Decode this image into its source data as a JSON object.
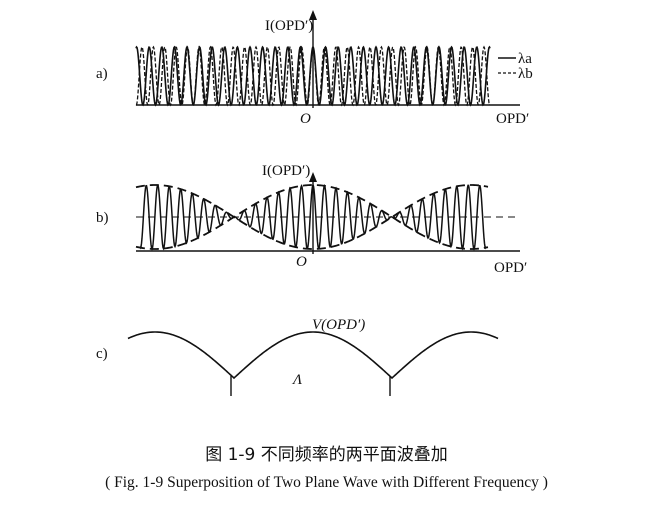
{
  "panels": [
    {
      "id": "a",
      "label": "a)",
      "y_axis_label": "I(OPD′)",
      "x_axis_label": "OPD′",
      "origin_label": "O",
      "legend": [
        {
          "symbol": "—",
          "name": "λa"
        },
        {
          "symbol": "---",
          "name": "λb"
        }
      ]
    },
    {
      "id": "b",
      "label": "b)",
      "y_axis_label": "I(OPD′)",
      "x_axis_label": "OPD′",
      "origin_label": "O"
    },
    {
      "id": "c",
      "label": "c)",
      "curve_label": "V(OPD′)",
      "period_label": "Λ"
    }
  ],
  "caption": {
    "cn": "图 1-9   不同频率的两平面波叠加",
    "en": "( Fig. 1-9   Superposition of Two Plane Wave with Different Frequency )"
  },
  "colors": {
    "ink": "#111111",
    "background": "#ffffff"
  }
}
